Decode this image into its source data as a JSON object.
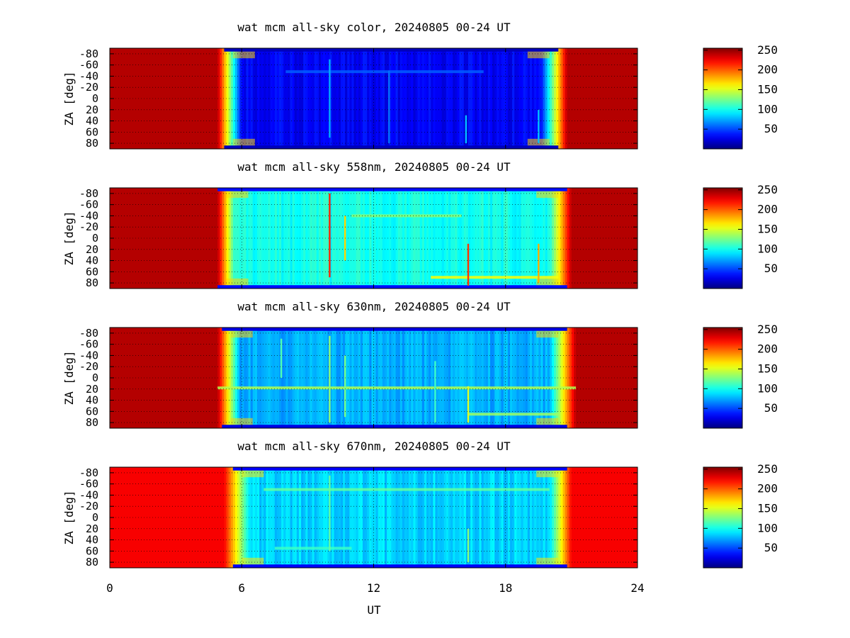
{
  "chart_data": {
    "type": "heatmap",
    "xlabel": "UT",
    "ylabel": "ZA [deg]",
    "xlim": [
      0,
      24
    ],
    "x_ticks": [
      "0",
      "6",
      "12",
      "18",
      "24"
    ],
    "ylim": [
      -90,
      90
    ],
    "y_tick_labels": [
      "-80",
      "-60",
      "-40",
      "-20",
      "0",
      "20",
      "40",
      "60",
      "80"
    ],
    "colorbar": {
      "range": [
        0,
        255
      ],
      "ticks": [
        "250",
        "200",
        "150",
        "100",
        "50"
      ],
      "colormap": "jet"
    },
    "grid": true,
    "panels": [
      {
        "title": "wat mcm all-sky color, 20240805 00-24 UT",
        "level_day": 242,
        "level_twilight": 170,
        "level_night": 30,
        "level_limb": 15,
        "dusk_start": 4.9,
        "dusk_end": 6.0,
        "dawn_start": 19.6,
        "dawn_end": 20.8,
        "streaks": [
          {
            "ut": 10.0,
            "level": 75,
            "za": [
              -70,
              70
            ]
          },
          {
            "ut": 12.7,
            "level": 60,
            "za": [
              -50,
              80
            ]
          },
          {
            "ut": 16.2,
            "level": 80,
            "za": [
              30,
              80
            ]
          },
          {
            "ut": 19.5,
            "level": 80,
            "za": [
              20,
              80
            ]
          }
        ],
        "bands": [
          {
            "za": -48,
            "level": 55,
            "ut": [
              8,
              17
            ]
          }
        ]
      },
      {
        "title": "wat mcm all-sky 558nm, 20240805 00-24 UT",
        "level_day": 242,
        "level_twilight": 170,
        "level_night": 100,
        "level_limb": 35,
        "dusk_start": 4.9,
        "dusk_end": 5.7,
        "dawn_start": 20.0,
        "dawn_end": 21.0,
        "streaks": [
          {
            "ut": 10.0,
            "level": 215,
            "za": [
              -80,
              70
            ]
          },
          {
            "ut": 10.7,
            "level": 170,
            "za": [
              -40,
              40
            ]
          },
          {
            "ut": 16.3,
            "level": 210,
            "za": [
              10,
              85
            ]
          },
          {
            "ut": 19.5,
            "level": 180,
            "za": [
              10,
              80
            ]
          }
        ],
        "bands": [
          {
            "za": 70,
            "level": 160,
            "ut": [
              14.6,
              20.4
            ]
          },
          {
            "za": -40,
            "level": 130,
            "ut": [
              11,
              16
            ]
          }
        ]
      },
      {
        "title": "wat mcm all-sky 630nm, 20240805 00-24 UT",
        "level_day": 242,
        "level_twilight": 170,
        "level_night": 75,
        "level_limb": 25,
        "dusk_start": 4.9,
        "dusk_end": 5.9,
        "dawn_start": 20.0,
        "dawn_end": 21.2,
        "streaks": [
          {
            "ut": 7.8,
            "level": 115,
            "za": [
              -70,
              0
            ]
          },
          {
            "ut": 10.0,
            "level": 130,
            "za": [
              -75,
              80
            ]
          },
          {
            "ut": 10.7,
            "level": 125,
            "za": [
              -40,
              70
            ]
          },
          {
            "ut": 14.8,
            "level": 110,
            "za": [
              -30,
              80
            ]
          },
          {
            "ut": 16.3,
            "level": 150,
            "za": [
              15,
              80
            ]
          }
        ],
        "bands": [
          {
            "za": 18,
            "level": 140,
            "ut": [
              4.9,
              21.2
            ]
          },
          {
            "za": 65,
            "level": 135,
            "ut": [
              16.3,
              20.4
            ]
          }
        ]
      },
      {
        "title": "wat mcm all-sky 670nm, 20240805 00-24 UT",
        "level_day": 225,
        "level_twilight": 165,
        "level_night": 85,
        "level_limb": 30,
        "dusk_start": 5.2,
        "dusk_end": 6.4,
        "dawn_start": 20.0,
        "dawn_end": 21.0,
        "streaks": [
          {
            "ut": 10.0,
            "level": 120,
            "za": [
              -75,
              60
            ]
          },
          {
            "ut": 16.3,
            "level": 130,
            "za": [
              20,
              80
            ]
          }
        ],
        "bands": [
          {
            "za": -50,
            "level": 120,
            "ut": [
              7,
              20
            ]
          },
          {
            "za": 55,
            "level": 110,
            "ut": [
              7.5,
              11
            ]
          }
        ]
      }
    ]
  }
}
